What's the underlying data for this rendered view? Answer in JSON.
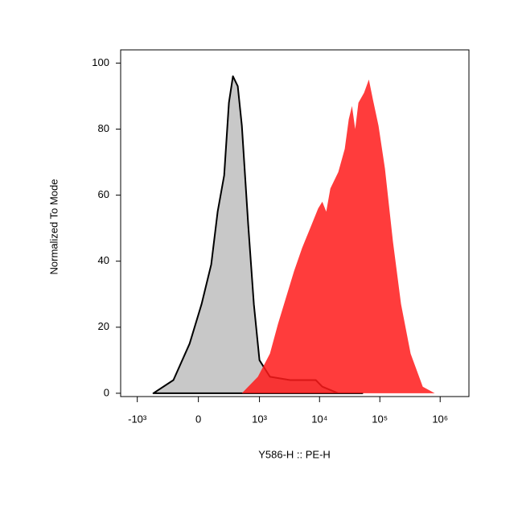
{
  "chart_data": {
    "type": "histogram-overlay",
    "x_label": "Y586-H :: PE-H",
    "y_label": "Normalized To Mode",
    "x_scale": "asinh",
    "x_linear_width": 196,
    "xlim": [
      -1900,
      3000000
    ],
    "xticks": [
      {
        "value": -1000,
        "label": "-10³"
      },
      0,
      {
        "value": 1000,
        "label": "10³"
      },
      {
        "value": 10000,
        "label": "10⁴"
      },
      {
        "value": 100000,
        "label": "10⁵"
      },
      {
        "value": 1000000,
        "label": "10⁶"
      }
    ],
    "ylim": [
      -1,
      104
    ],
    "yticks": [
      0,
      20,
      40,
      60,
      80,
      100
    ],
    "series": [
      {
        "color": "#c8c8c8",
        "stroke": "#000000",
        "opacity": 1,
        "x": [
          -530,
          -216,
          -67,
          24,
          100,
          158,
          226,
          284,
          340,
          419,
          497,
          643,
          804,
          1000,
          1500,
          3250,
          6000,
          8660,
          11100,
          20500,
          51500
        ],
        "values": [
          0,
          4,
          15,
          27,
          39,
          55,
          66,
          88,
          96,
          93,
          81,
          51,
          27,
          10,
          5,
          4,
          4,
          4,
          2,
          0,
          0
        ]
      },
      {
        "color": "#ff1a1a",
        "stroke": "none",
        "opacity": 0.85,
        "x": [
          -135,
          497,
          940,
          1500,
          2040,
          2780,
          3780,
          5140,
          7000,
          9510,
          11100,
          12900,
          15100,
          20500,
          26200,
          30500,
          34500,
          39000,
          44100,
          54700,
          65800,
          76700,
          95000,
          121500,
          165000,
          225000,
          324000,
          514000,
          813000
        ],
        "values": [
          0,
          0,
          5,
          12,
          21,
          29,
          37,
          44,
          50,
          56,
          58,
          55,
          62,
          67,
          74,
          83,
          87,
          80,
          88,
          91,
          95,
          89,
          81,
          68,
          46,
          27,
          12,
          2,
          0
        ]
      }
    ]
  }
}
